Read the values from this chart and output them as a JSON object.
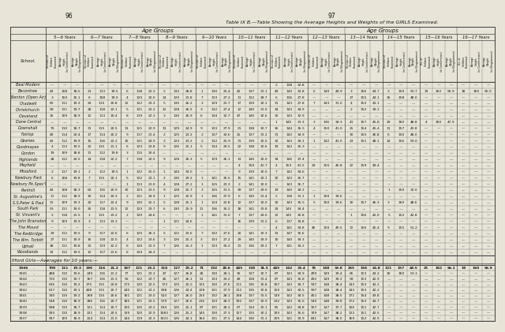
{
  "page_numbers": [
    "96",
    "97"
  ],
  "title": "Table IX B.—Table Showing the Average Heights and Weights of the GIRLS Examined.",
  "age_groups": [
    "5—6 Years",
    "6—7 Years",
    "7—8 Years",
    "8—9 Years",
    "9—10 Years",
    "10—11 Years",
    "11—12 Years",
    "12—13 Years",
    "13—14 Years",
    "14—15 Years",
    "15—16 Years",
    "16—17 Years"
  ],
  "schools": [
    "Beal Modern",
    "Becontree",
    "Benton (Open Air)",
    "Chadwell",
    "Christchurch",
    "Cleveland",
    "Dane Central",
    "Downshall",
    "Fairlop",
    "Gearies",
    "Goodmayes",
    "Gordon",
    "Highlands",
    "Mayfield",
    "Mossford",
    "Newbury Park",
    "Newbury Pk.Spec'l",
    "Parkhill",
    "St. Augustine's",
    "S.S.Peter & Paul",
    "South Park",
    "St. Vincent's",
    "The John Bramston",
    "The Mount",
    "The Redbridge",
    "The Wm. Torbitt",
    "Uphall",
    "Woodlands"
  ],
  "ilford_years": [
    "1946",
    "1945",
    "1944",
    "1943",
    "1942",
    "1941",
    "1940",
    "1939",
    "1938",
    "1937"
  ],
  "bg_color": "#e8e4d8",
  "line_color": "#444444",
  "text_color": "#111111"
}
